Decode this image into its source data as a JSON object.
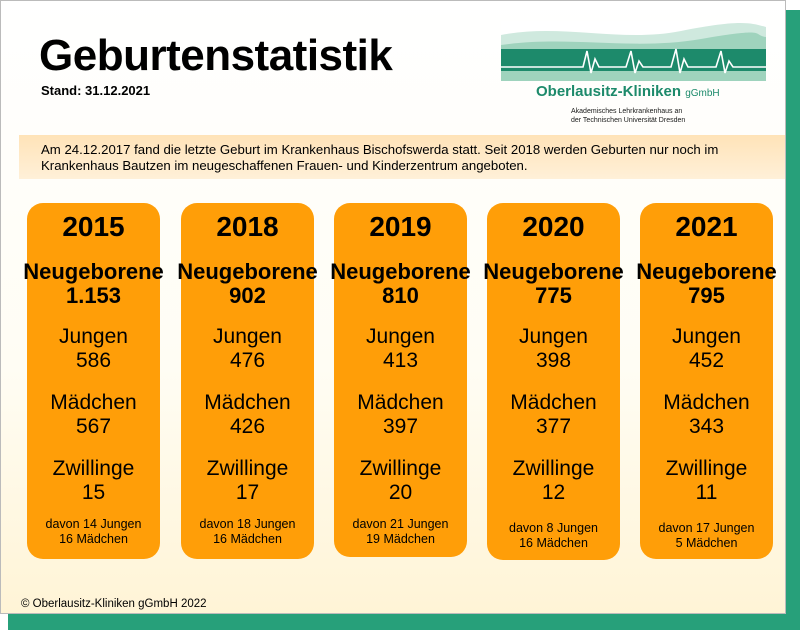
{
  "header": {
    "title": "Geburtenstatistik",
    "stand": "Stand: 31.12.2021"
  },
  "logo": {
    "name": "Oberlausitz-Kliniken",
    "name_suffix": "gGmbH",
    "sub_line1": "Akademisches Lehrkrankenhaus an",
    "sub_line2": "der Technischen Universität Dresden",
    "colors": {
      "green": "#1d8a6b",
      "light_green": "#b7e0cf"
    }
  },
  "banner": {
    "text": "Am 24.12.2017 fand die letzte Geburt im Krankenhaus Bischofswerda statt. Seit 2018 werden Geburten nur noch im Krankenhaus Bautzen im neugeschaffenen Frauen- und Kinderzentrum angeboten."
  },
  "labels": {
    "newborns": "Neugeborene",
    "boys": "Jungen",
    "girls": "Mädchen",
    "twins": "Zwillinge"
  },
  "years": [
    {
      "year": "2015",
      "newborns": "1.153",
      "boys": "586",
      "girls": "567",
      "twins": "15",
      "twins_boys": "davon 14 Jungen",
      "twins_girls": "16 Mädchen"
    },
    {
      "year": "2018",
      "newborns": "902",
      "boys": "476",
      "girls": "426",
      "twins": "17",
      "twins_boys": "davon 18 Jungen",
      "twins_girls": "16 Mädchen"
    },
    {
      "year": "2019",
      "newborns": "810",
      "boys": "413",
      "girls": "397",
      "twins": "20",
      "twins_boys": "davon 21 Jungen",
      "twins_girls": "19 Mädchen"
    },
    {
      "year": "2020",
      "newborns": "775",
      "boys": "398",
      "girls": "377",
      "twins": "12",
      "twins_boys": "davon 8 Jungen",
      "twins_girls": "16 Mädchen"
    },
    {
      "year": "2021",
      "newborns": "795",
      "boys": "452",
      "girls": "343",
      "twins": "11",
      "twins_boys": "davon 17 Jungen",
      "twins_girls": "5 Mädchen"
    }
  ],
  "footer": {
    "copyright": "© Oberlausitz-Kliniken gGmbH 2022"
  },
  "colors": {
    "column_orange": "#ff9e08",
    "banner_bg": "#ffe3b8",
    "shadow_green": "#27a07a"
  }
}
